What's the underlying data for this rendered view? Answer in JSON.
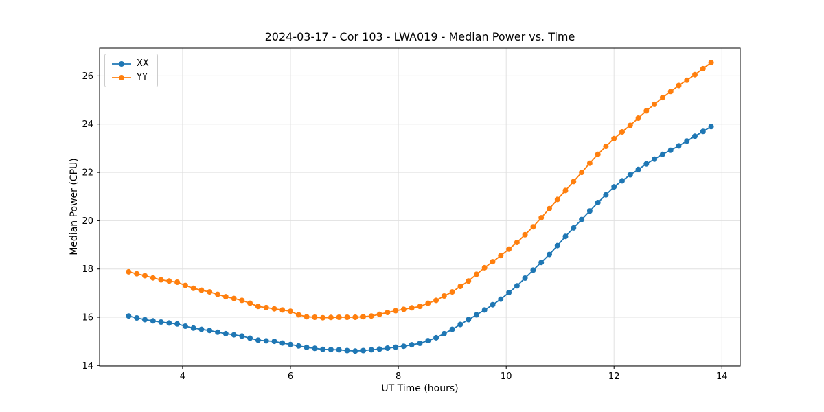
{
  "chart_data": {
    "type": "line",
    "title": "2024-03-17 - Cor 103 - LWA019 - Median Power vs. Time",
    "xlabel": "UT Time (hours)",
    "ylabel": "Median Power (CPU)",
    "xlim": [
      2.46,
      14.34
    ],
    "ylim": [
      13.98,
      27.15
    ],
    "xticks": [
      4,
      6,
      8,
      10,
      12,
      14
    ],
    "yticks": [
      14,
      16,
      18,
      20,
      22,
      24,
      26
    ],
    "grid": true,
    "legend_position": "upper left",
    "x": [
      3.0,
      3.15,
      3.3,
      3.45,
      3.6,
      3.75,
      3.9,
      4.05,
      4.2,
      4.35,
      4.5,
      4.65,
      4.8,
      4.95,
      5.1,
      5.25,
      5.4,
      5.55,
      5.7,
      5.85,
      6.0,
      6.15,
      6.3,
      6.45,
      6.6,
      6.75,
      6.9,
      7.05,
      7.2,
      7.35,
      7.5,
      7.65,
      7.8,
      7.95,
      8.1,
      8.25,
      8.4,
      8.55,
      8.7,
      8.85,
      9.0,
      9.15,
      9.3,
      9.45,
      9.6,
      9.75,
      9.9,
      10.05,
      10.2,
      10.35,
      10.5,
      10.65,
      10.8,
      10.95,
      11.1,
      11.25,
      11.4,
      11.55,
      11.7,
      11.85,
      12.0,
      12.15,
      12.3,
      12.45,
      12.6,
      12.75,
      12.9,
      13.05,
      13.2,
      13.35,
      13.5,
      13.65,
      13.8
    ],
    "series": [
      {
        "name": "XX",
        "color": "#1f77b4",
        "values": [
          16.05,
          15.97,
          15.9,
          15.85,
          15.8,
          15.76,
          15.72,
          15.63,
          15.55,
          15.5,
          15.45,
          15.38,
          15.32,
          15.27,
          15.22,
          15.13,
          15.05,
          15.02,
          15.0,
          14.93,
          14.87,
          14.81,
          14.75,
          14.71,
          14.67,
          14.66,
          14.65,
          14.62,
          14.6,
          14.62,
          14.65,
          14.68,
          14.72,
          14.76,
          14.8,
          14.86,
          14.92,
          15.03,
          15.15,
          15.32,
          15.5,
          15.7,
          15.9,
          16.1,
          16.3,
          16.52,
          16.75,
          17.02,
          17.3,
          17.62,
          17.95,
          18.27,
          18.6,
          18.97,
          19.35,
          19.7,
          20.05,
          20.4,
          20.75,
          21.07,
          21.4,
          21.65,
          21.9,
          22.12,
          22.35,
          22.55,
          22.75,
          22.92,
          23.1,
          23.3,
          23.5,
          23.7,
          23.9
        ]
      },
      {
        "name": "YY",
        "color": "#ff7f0e",
        "values": [
          17.88,
          17.8,
          17.72,
          17.63,
          17.55,
          17.5,
          17.45,
          17.32,
          17.2,
          17.12,
          17.05,
          16.95,
          16.85,
          16.78,
          16.7,
          16.58,
          16.45,
          16.4,
          16.35,
          16.3,
          16.25,
          16.1,
          16.02,
          16.0,
          15.98,
          15.99,
          16.0,
          16.0,
          16.0,
          16.02,
          16.05,
          16.12,
          16.2,
          16.27,
          16.33,
          16.39,
          16.45,
          16.58,
          16.7,
          16.88,
          17.05,
          17.28,
          17.5,
          17.78,
          18.05,
          18.3,
          18.55,
          18.82,
          19.1,
          19.42,
          19.75,
          20.12,
          20.5,
          20.88,
          21.25,
          21.62,
          22.0,
          22.38,
          22.75,
          23.08,
          23.4,
          23.68,
          23.95,
          24.25,
          24.55,
          24.82,
          25.1,
          25.35,
          25.6,
          25.82,
          26.05,
          26.3,
          26.55
        ]
      }
    ]
  }
}
